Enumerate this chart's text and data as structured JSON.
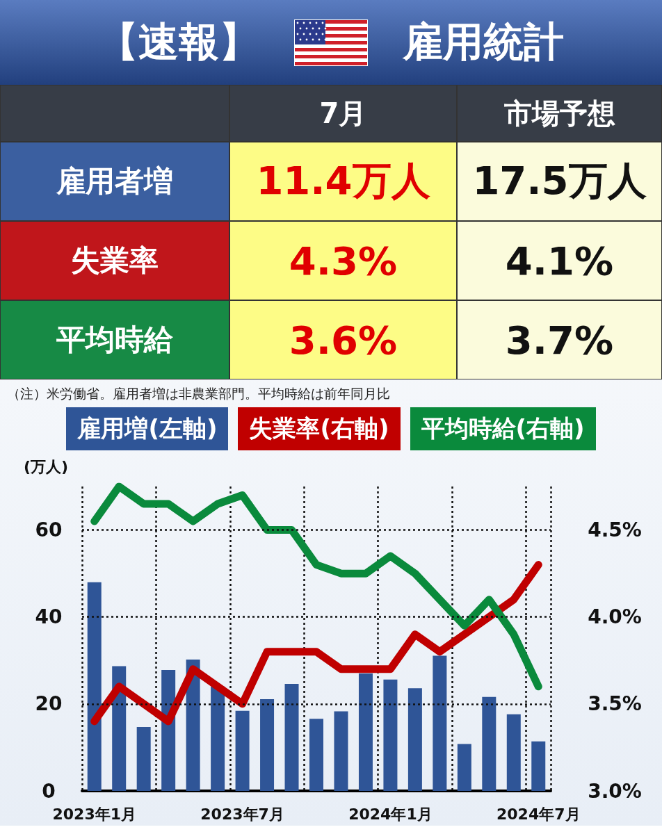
{
  "chart_data": [
    {
      "type": "other",
      "title": "【速報】",
      "subtitle": "雇用統計",
      "categories": [
        "7月",
        "市場予想"
      ],
      "y_categories": [
        "雇用者増",
        "失業率",
        "平均時給"
      ],
      "cell_labels": [
        [
          "11.4万人",
          "17.5万人"
        ],
        [
          "4.3%",
          "4.1%"
        ],
        [
          "3.6%",
          "3.7%"
        ]
      ]
    },
    {
      "type": "bar",
      "ylabel": "(万人)",
      "annotations": [
        "（注）米労働省。雇用者増は非農業部門。平均時給は前年同月比"
      ],
      "categories": [
        "2023年1月",
        null,
        null,
        null,
        null,
        null,
        "2023年7月",
        null,
        null,
        null,
        null,
        null,
        "2024年1月",
        null,
        null,
        null,
        null,
        null,
        "2024年7月"
      ],
      "series": [
        {
          "name": "雇用増(左軸)",
          "type": "bar",
          "color": "#2f5597",
          "values": [
            48,
            28.7,
            14.7,
            27.8,
            30.2,
            24,
            18.4,
            21.1,
            24.6,
            16.6,
            18.3,
            27,
            25.6,
            23.6,
            31.1,
            10.8,
            21.6,
            17.6,
            11.4
          ]
        },
        {
          "name": "失業率(右軸)",
          "type": "line",
          "axis": "y2",
          "color": "#c00000",
          "values": [
            3.4,
            3.6,
            3.5,
            3.4,
            3.7,
            3.6,
            3.5,
            3.8,
            3.8,
            3.8,
            3.7,
            3.7,
            3.7,
            3.9,
            3.8,
            3.9,
            4.0,
            4.1,
            4.3
          ]
        },
        {
          "name": "平均時給(右軸)",
          "type": "line",
          "axis": "y2",
          "color": "#0a8a3c",
          "values": [
            4.55,
            4.75,
            4.65,
            4.65,
            4.55,
            4.65,
            4.7,
            4.5,
            4.5,
            4.3,
            4.25,
            4.25,
            4.35,
            4.25,
            4.1,
            3.95,
            4.1,
            3.9,
            3.6
          ]
        }
      ],
      "ylim": [
        0,
        70
      ],
      "yticks": [
        0,
        20,
        40,
        60
      ],
      "y2lim": [
        3.0,
        4.75
      ],
      "y2ticks": [
        {
          "value": 3.0,
          "label": "3.0%"
        },
        {
          "value": 3.5,
          "label": "3.5%"
        },
        {
          "value": 4.0,
          "label": "4.0%"
        },
        {
          "value": 4.5,
          "label": "4.5%"
        }
      ],
      "grid": true,
      "legend": "top",
      "marker": "none",
      "line_style": "solid"
    }
  ]
}
